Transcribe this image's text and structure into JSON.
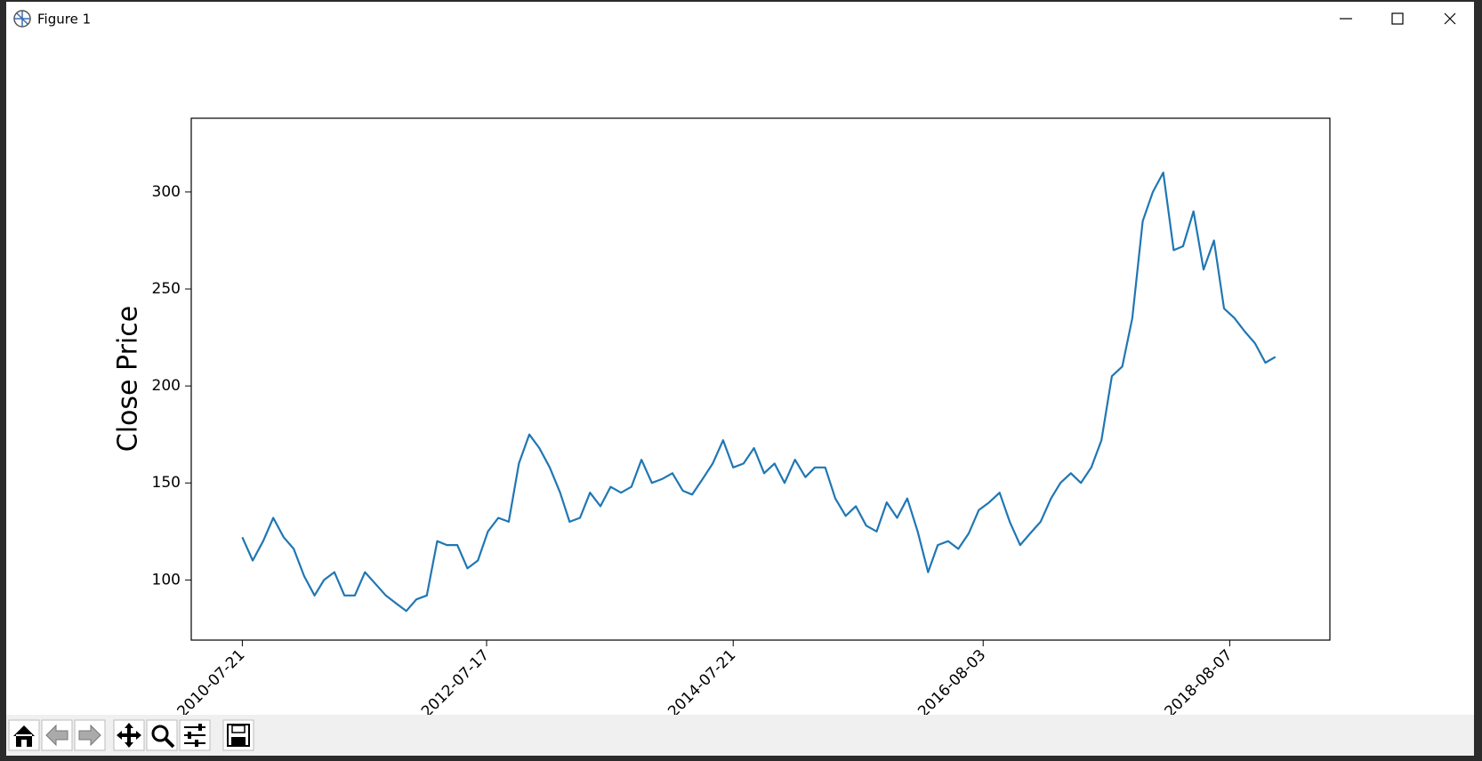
{
  "window": {
    "title": "Figure 1"
  },
  "chart_data": {
    "type": "line",
    "ylabel": "Close Price",
    "color": "#1f77b4",
    "grid": false,
    "xlim": [
      "2010-02-19",
      "2019-06-01"
    ],
    "xticks": [
      "2010-07-21",
      "2012-07-17",
      "2014-07-21",
      "2016-08-03",
      "2018-08-07"
    ],
    "ylim": [
      69,
      338
    ],
    "yticks": [
      100,
      150,
      200,
      250,
      300
    ],
    "x": [
      "2010-07-21",
      "2010-08-21",
      "2010-09-21",
      "2010-10-21",
      "2010-11-21",
      "2010-12-21",
      "2011-01-21",
      "2011-02-21",
      "2011-03-21",
      "2011-04-21",
      "2011-05-21",
      "2011-06-21",
      "2011-07-21",
      "2011-08-21",
      "2011-09-21",
      "2011-10-21",
      "2011-11-21",
      "2011-12-21",
      "2012-01-21",
      "2012-02-21",
      "2012-03-21",
      "2012-04-21",
      "2012-05-21",
      "2012-06-21",
      "2012-07-21",
      "2012-08-21",
      "2012-09-21",
      "2012-10-21",
      "2012-11-21",
      "2012-12-21",
      "2013-01-21",
      "2013-02-21",
      "2013-03-21",
      "2013-04-21",
      "2013-05-21",
      "2013-06-21",
      "2013-07-21",
      "2013-08-21",
      "2013-09-21",
      "2013-10-21",
      "2013-11-21",
      "2013-12-21",
      "2014-01-21",
      "2014-02-21",
      "2014-03-21",
      "2014-04-21",
      "2014-05-21",
      "2014-06-21",
      "2014-07-21",
      "2014-08-21",
      "2014-09-21",
      "2014-10-21",
      "2014-11-21",
      "2014-12-21",
      "2015-01-21",
      "2015-02-21",
      "2015-03-21",
      "2015-04-21",
      "2015-05-21",
      "2015-06-21",
      "2015-07-21",
      "2015-08-21",
      "2015-09-21",
      "2015-10-21",
      "2015-11-21",
      "2015-12-21",
      "2016-01-21",
      "2016-02-21",
      "2016-03-21",
      "2016-04-21",
      "2016-05-21",
      "2016-06-21",
      "2016-07-21",
      "2016-08-21",
      "2016-09-21",
      "2016-10-21",
      "2016-11-21",
      "2016-12-21",
      "2017-01-21",
      "2017-02-21",
      "2017-03-21",
      "2017-04-21",
      "2017-05-21",
      "2017-06-21",
      "2017-07-21",
      "2017-08-21",
      "2017-09-21",
      "2017-10-21",
      "2017-11-21",
      "2017-12-21",
      "2018-01-21",
      "2018-02-21",
      "2018-03-21",
      "2018-04-21",
      "2018-05-21",
      "2018-06-21",
      "2018-07-21",
      "2018-08-21",
      "2018-09-21",
      "2018-10-21",
      "2018-11-21",
      "2018-12-21"
    ],
    "values": [
      122,
      110,
      120,
      132,
      122,
      116,
      102,
      92,
      100,
      104,
      92,
      92,
      104,
      98,
      92,
      88,
      84,
      90,
      92,
      120,
      118,
      118,
      106,
      110,
      125,
      132,
      130,
      160,
      175,
      168,
      158,
      145,
      130,
      132,
      145,
      138,
      148,
      145,
      148,
      162,
      150,
      152,
      155,
      146,
      144,
      152,
      160,
      172,
      158,
      160,
      168,
      155,
      160,
      150,
      162,
      153,
      158,
      158,
      142,
      133,
      138,
      128,
      125,
      140,
      132,
      142,
      125,
      104,
      118,
      120,
      116,
      124,
      136,
      140,
      145,
      130,
      118,
      124,
      130,
      142,
      150,
      155,
      150,
      158,
      172,
      205,
      210,
      235,
      285,
      300,
      310,
      270,
      272,
      290,
      260,
      275,
      240,
      235,
      228,
      222,
      212,
      215
    ]
  }
}
